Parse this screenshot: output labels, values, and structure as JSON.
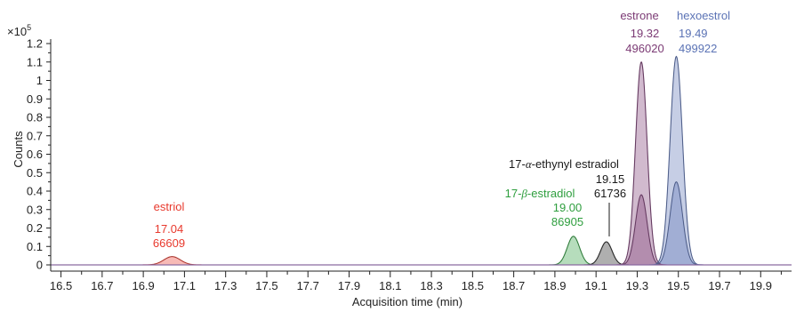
{
  "chart_data": {
    "type": "line",
    "xlabel": "Acquisition time (min)",
    "ylabel": "Counts",
    "y_exponent_label": "×10",
    "y_exponent_power": "5",
    "y_scale": 100000,
    "xlim": [
      16.45,
      20.05
    ],
    "ylim": [
      -0.02,
      1.2
    ],
    "x_ticks": [
      16.5,
      16.6,
      16.7,
      16.8,
      16.9,
      17.0,
      17.1,
      17.2,
      17.3,
      17.4,
      17.5,
      17.6,
      17.7,
      17.8,
      17.9,
      18.0,
      18.1,
      18.2,
      18.3,
      18.4,
      18.5,
      18.6,
      18.7,
      18.8,
      18.9,
      19.0,
      19.1,
      19.2,
      19.3,
      19.4,
      19.5,
      19.6,
      19.7,
      19.8,
      19.9,
      20.0
    ],
    "x_tick_labels": [
      "16.5",
      "16.7",
      "16.9",
      "17.1",
      "17.3",
      "17.5",
      "17.7",
      "17.9",
      "18.1",
      "18.3",
      "18.5",
      "18.7",
      "18.9",
      "19.1",
      "19.3",
      "19.5",
      "19.7",
      "19.9"
    ],
    "x_tick_label_values": [
      16.5,
      16.7,
      16.9,
      17.1,
      17.3,
      17.5,
      17.7,
      17.9,
      18.1,
      18.3,
      18.5,
      18.7,
      18.9,
      19.1,
      19.3,
      19.5,
      19.7,
      19.9
    ],
    "y_ticks": [
      0,
      0.1,
      0.2,
      0.3,
      0.4,
      0.5,
      0.6,
      0.7,
      0.8,
      0.9,
      1.0,
      1.1,
      1.2
    ],
    "y_tick_labels": [
      "0",
      "0.1",
      "0.2",
      "0.3",
      "0.4",
      "0.5",
      "0.6",
      "0.7",
      "0.8",
      "0.9",
      "1",
      "1.1",
      "1.2"
    ],
    "series": [
      {
        "name": "estriol",
        "rt": "17.04",
        "area": "66609",
        "color": "#e8392d",
        "peaks": [
          {
            "center": 17.04,
            "height": 0.045,
            "width": 0.04
          }
        ]
      },
      {
        "name": "17-β-estradiol",
        "rt": "19.00",
        "area": "86905",
        "color": "#2e9e3e",
        "peaks": [
          {
            "center": 18.99,
            "height": 0.155,
            "width": 0.03
          }
        ]
      },
      {
        "name": "17-α-ethynyl estradiol",
        "rt": "19.15",
        "area": "61736",
        "color": "#1a1a1a",
        "peaks": [
          {
            "center": 19.15,
            "height": 0.125,
            "width": 0.028
          }
        ]
      },
      {
        "name": "estrone",
        "rt": "19.32",
        "area": "496020",
        "color": "#7b3a74",
        "peaks": [
          {
            "center": 19.32,
            "height": 1.1,
            "width": 0.028
          },
          {
            "center": 19.32,
            "height": 0.38,
            "width": 0.028
          }
        ]
      },
      {
        "name": "hexoestrol",
        "rt": "19.49",
        "area": "499922",
        "color": "#5b73b5",
        "peaks": [
          {
            "center": 19.49,
            "height": 1.13,
            "width": 0.03
          },
          {
            "center": 19.49,
            "height": 0.45,
            "width": 0.03
          }
        ]
      }
    ],
    "annotations": {
      "estriol": {
        "name": "estriol",
        "rt": "17.04",
        "area": "66609"
      },
      "beta_estradiol": {
        "name_prefix": "17-",
        "name_greek": "β",
        "name_suffix": "-estradiol",
        "rt": "19.00",
        "area": "86905"
      },
      "alpha_ethynyl": {
        "name_prefix": "17-",
        "name_greek": "α",
        "name_suffix": "-ethynyl estradiol",
        "rt": "19.15",
        "area": "61736"
      },
      "estrone": {
        "name": "estrone",
        "rt": "19.32",
        "area": "496020"
      },
      "hexoestrol": {
        "name": "hexoestrol",
        "rt": "19.49",
        "area": "499922"
      }
    }
  }
}
